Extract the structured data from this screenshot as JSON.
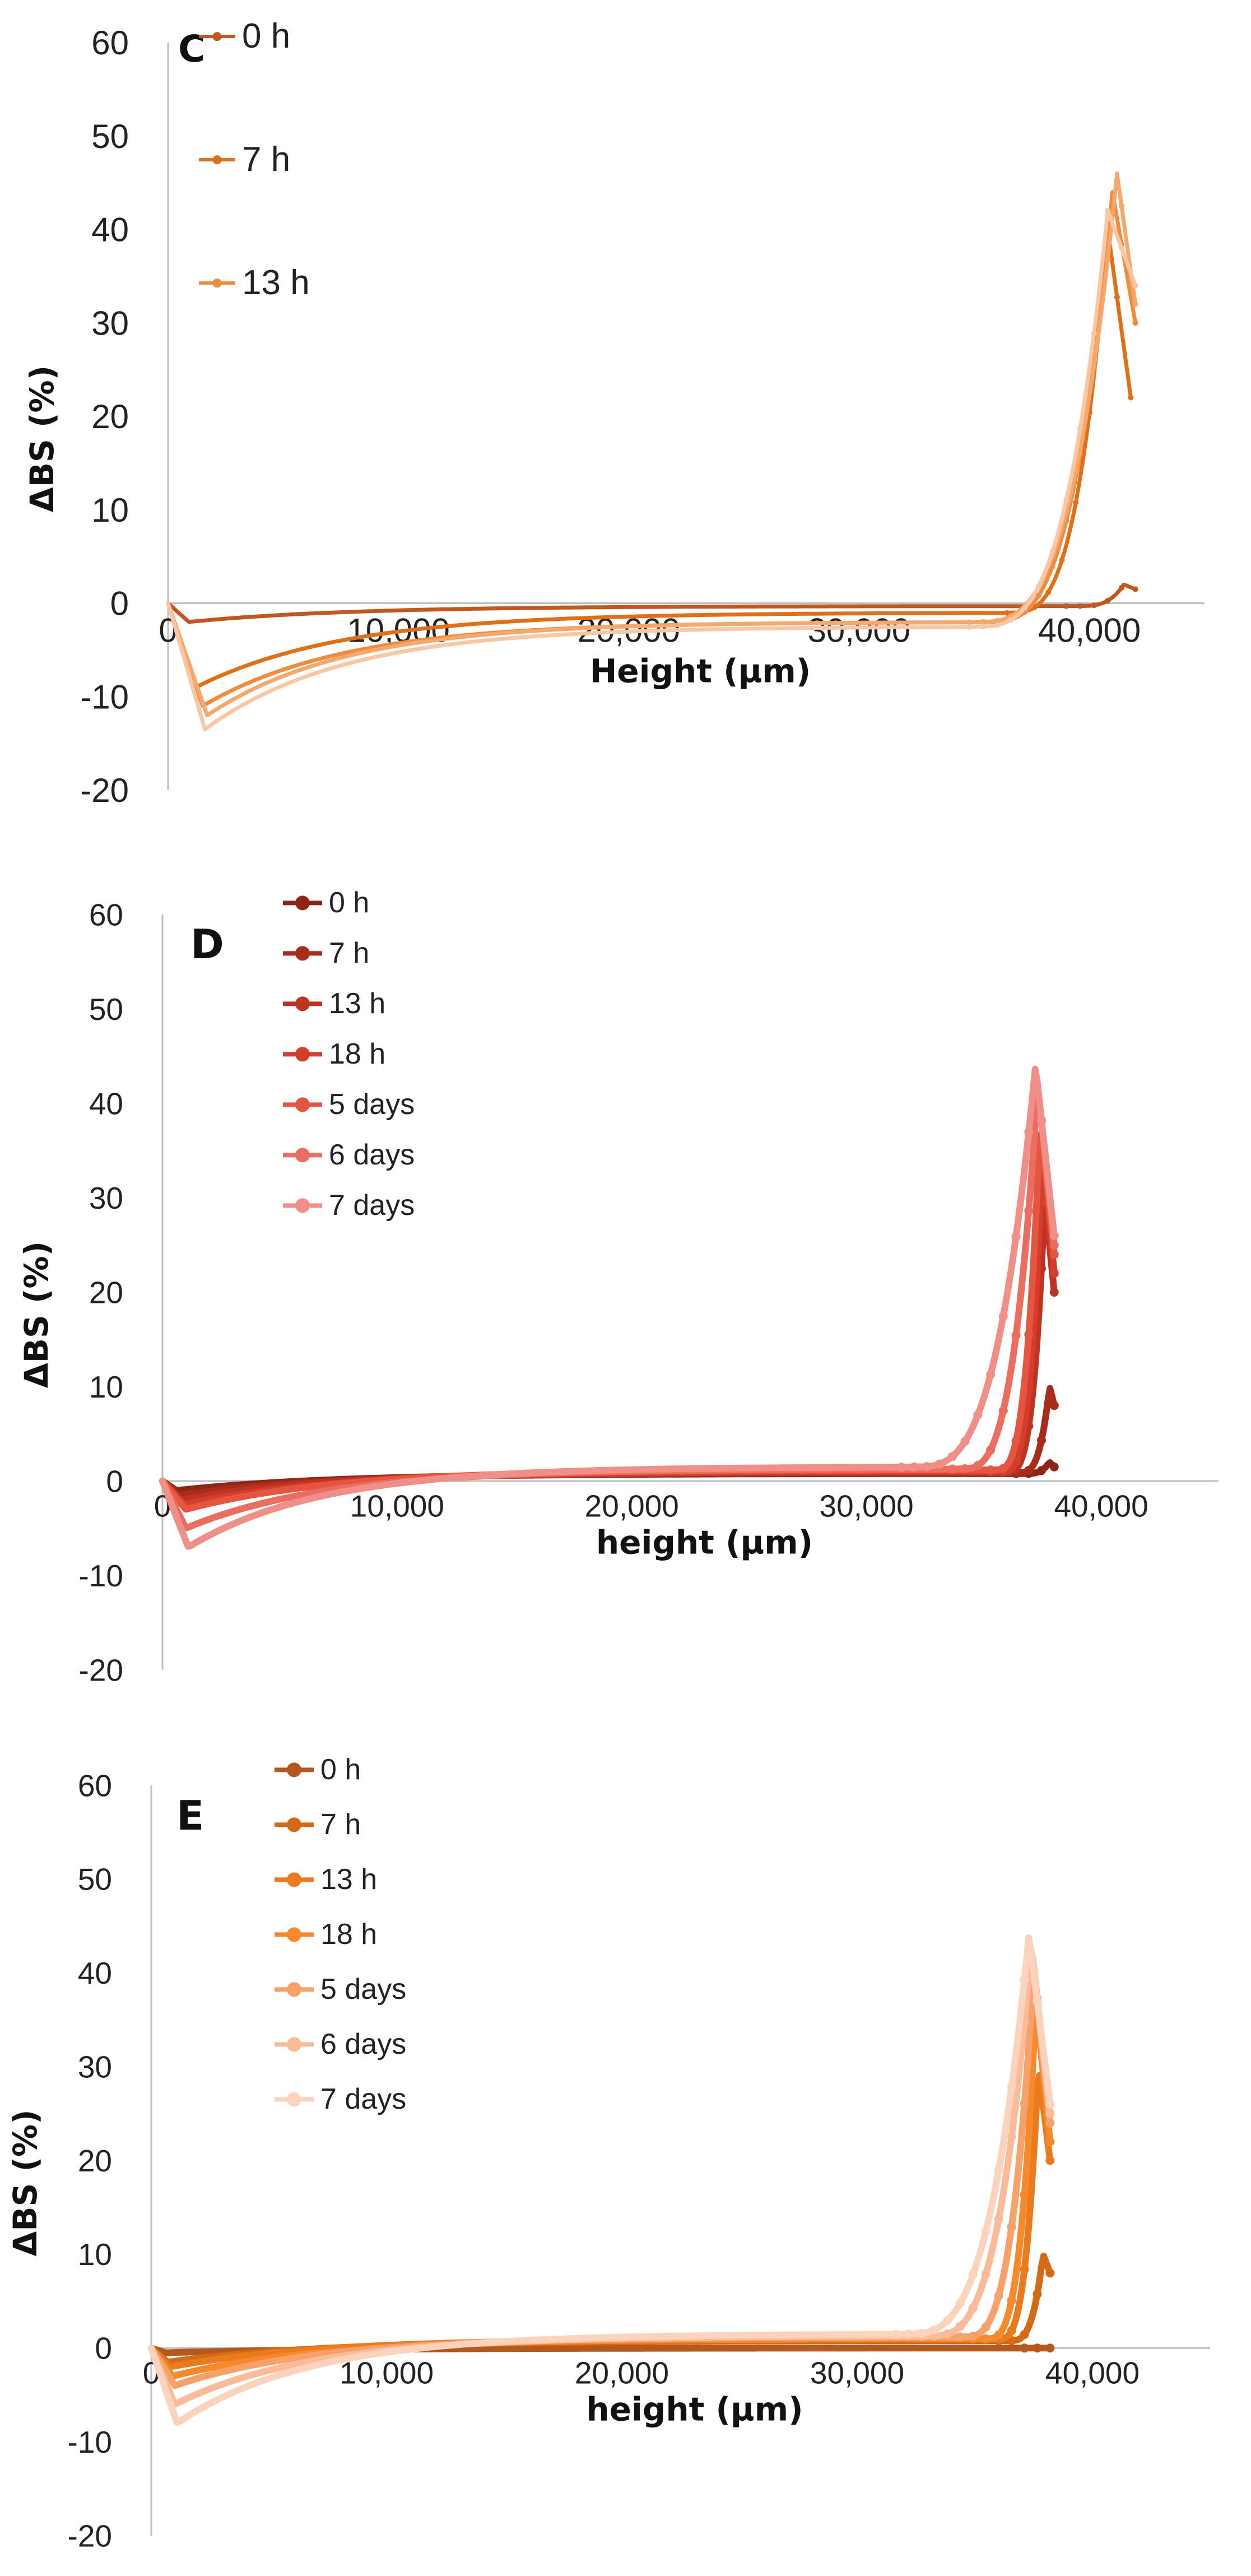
{
  "chart_data": [
    {
      "type": "line",
      "panel": "C",
      "xlabel": "Height (µm)",
      "ylabel": "ΔBS (%)",
      "xlim": [
        0,
        45000
      ],
      "ylim": [
        -20,
        60
      ],
      "xticks": [
        0,
        10000,
        20000,
        30000,
        40000
      ],
      "xtick_labels": [
        "0",
        "10,000",
        "20,000",
        "30,000",
        "40,000"
      ],
      "yticks": [
        60,
        50,
        40,
        30,
        20,
        10,
        0,
        -10,
        -20
      ],
      "ytick_labels": [
        "60",
        "50",
        "40",
        "30",
        "20",
        "10",
        "0",
        "-10",
        "-20"
      ],
      "grid": false,
      "legend_position": "top-left",
      "series": [
        {
          "name": "0 h",
          "color": "#c0581f",
          "min": -2,
          "min_x": 900,
          "plateau": -0.3,
          "rise_start": 39500,
          "peak": 2,
          "peak_x": 41500,
          "end": 1.5,
          "end_x": 42000
        },
        {
          "name": "7 h",
          "color": "#e07018",
          "min": -9,
          "min_x": 1200,
          "plateau": -1,
          "rise_start": 36500,
          "peak": 40,
          "peak_x": 40800,
          "end": 22,
          "end_x": 41800
        },
        {
          "name": "13 h",
          "color": "#f08c3e",
          "min": -11,
          "min_x": 1500,
          "plateau": -2,
          "rise_start": 35500,
          "peak": 44,
          "peak_x": 41000,
          "end": 30,
          "end_x": 42000
        },
        {
          "name": "",
          "color": "#f6a86c",
          "min": -12,
          "min_x": 1700,
          "plateau": -2,
          "rise_start": 35000,
          "peak": 46,
          "peak_x": 41200,
          "end": 32,
          "end_x": 42000
        },
        {
          "name": "",
          "color": "#f9c7a3",
          "min": -13.5,
          "min_x": 1600,
          "plateau": -2.5,
          "rise_start": 35000,
          "peak": 42,
          "peak_x": 40800,
          "end": 34,
          "end_x": 42000
        }
      ]
    },
    {
      "type": "line",
      "panel": "D",
      "xlabel": "height (µm)",
      "ylabel": "ΔBS (%)",
      "xlim": [
        0,
        45000
      ],
      "ylim": [
        -20,
        60
      ],
      "xticks": [
        0,
        10000,
        20000,
        30000,
        40000
      ],
      "xtick_labels": [
        "0",
        "10,000",
        "20,000",
        "30,000",
        "40,000"
      ],
      "yticks": [
        60,
        50,
        40,
        30,
        20,
        10,
        0,
        -10,
        -20
      ],
      "ytick_labels": [
        "60",
        "50",
        "40",
        "30",
        "20",
        "10",
        "0",
        "-10",
        "-20"
      ],
      "grid": false,
      "legend_position": "top-left",
      "series": [
        {
          "name": "0 h",
          "color": "#8e2618",
          "min": -1,
          "min_x": 600,
          "plateau": 0.8,
          "rise_start": 36800,
          "peak": 2,
          "peak_x": 37800,
          "end": 1.5,
          "end_x": 38000
        },
        {
          "name": "7 h",
          "color": "#a82c1c",
          "min": -1.5,
          "min_x": 700,
          "plateau": 0.9,
          "rise_start": 36500,
          "peak": 10,
          "peak_x": 37800,
          "end": 8,
          "end_x": 38000
        },
        {
          "name": "13 h",
          "color": "#bf3322",
          "min": -2,
          "min_x": 800,
          "plateau": 1,
          "rise_start": 36000,
          "peak": 30,
          "peak_x": 37600,
          "end": 20,
          "end_x": 38000
        },
        {
          "name": "18 h",
          "color": "#d43d2b",
          "min": -2.5,
          "min_x": 900,
          "plateau": 1,
          "rise_start": 35800,
          "peak": 35,
          "peak_x": 37500,
          "end": 22,
          "end_x": 38000
        },
        {
          "name": "5 days",
          "color": "#e5553f",
          "min": -3,
          "min_x": 1000,
          "plateau": 1.2,
          "rise_start": 35500,
          "peak": 38,
          "peak_x": 37400,
          "end": 24,
          "end_x": 38000
        },
        {
          "name": "6 days",
          "color": "#ea6d60",
          "min": -5,
          "min_x": 1000,
          "plateau": 1.3,
          "rise_start": 34000,
          "peak": 42,
          "peak_x": 37300,
          "end": 25,
          "end_x": 38000
        },
        {
          "name": "7 days",
          "color": "#f08f88",
          "min": -7,
          "min_x": 1100,
          "plateau": 1.5,
          "rise_start": 32000,
          "peak": 44,
          "peak_x": 37200,
          "end": 26,
          "end_x": 38000
        }
      ]
    },
    {
      "type": "line",
      "panel": "E",
      "xlabel": "height (µm)",
      "ylabel": "ΔBS (%)",
      "xlim": [
        0,
        45000
      ],
      "ylim": [
        -20,
        60
      ],
      "xticks": [
        0,
        10000,
        20000,
        30000,
        40000
      ],
      "xtick_labels": [
        "0",
        "10,000",
        "20,000",
        "30,000",
        "40,000"
      ],
      "yticks": [
        60,
        50,
        40,
        30,
        20,
        10,
        0,
        -10,
        -20
      ],
      "ytick_labels": [
        "60",
        "50",
        "40",
        "30",
        "20",
        "10",
        "0",
        "-10",
        "-20"
      ],
      "grid": false,
      "legend_position": "top-left",
      "series": [
        {
          "name": "0 h",
          "color": "#b5581c",
          "min": -0.5,
          "min_x": 600,
          "plateau": 0,
          "rise_start": 37500,
          "peak": 0,
          "peak_x": 38000,
          "end": 0,
          "end_x": 38200
        },
        {
          "name": "7 h",
          "color": "#d56a16",
          "min": -1.5,
          "min_x": 700,
          "plateau": 0.8,
          "rise_start": 36500,
          "peak": 10,
          "peak_x": 37900,
          "end": 8,
          "end_x": 38200
        },
        {
          "name": "13 h",
          "color": "#ea7a1e",
          "min": -2,
          "min_x": 800,
          "plateau": 1,
          "rise_start": 36000,
          "peak": 30,
          "peak_x": 37700,
          "end": 20,
          "end_x": 38200
        },
        {
          "name": "18 h",
          "color": "#f68a2a",
          "min": -3,
          "min_x": 900,
          "plateau": 1,
          "rise_start": 35500,
          "peak": 37,
          "peak_x": 37600,
          "end": 22,
          "end_x": 38200
        },
        {
          "name": "5 days",
          "color": "#f6a06a",
          "min": -4,
          "min_x": 1000,
          "plateau": 1.2,
          "rise_start": 34500,
          "peak": 40,
          "peak_x": 37500,
          "end": 24,
          "end_x": 38200
        },
        {
          "name": "6 days",
          "color": "#f9bb98",
          "min": -6,
          "min_x": 1000,
          "plateau": 1.3,
          "rise_start": 33000,
          "peak": 43,
          "peak_x": 37400,
          "end": 25,
          "end_x": 38200
        },
        {
          "name": "7 days",
          "color": "#fbd3bd",
          "min": -8,
          "min_x": 1100,
          "plateau": 1.5,
          "rise_start": 32000,
          "peak": 44,
          "peak_x": 37300,
          "end": 26,
          "end_x": 38200
        }
      ]
    }
  ]
}
